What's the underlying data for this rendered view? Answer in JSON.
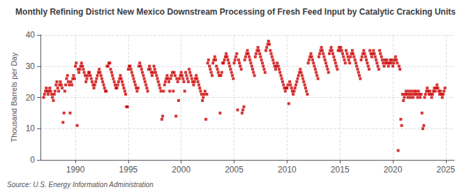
{
  "chart_data": {
    "type": "scatter",
    "title": "Monthly Refining District New Mexico Downstream Processing of Fresh Feed Input by Catalytic Cracking Units",
    "ylabel": "Thousand Barrels per Day",
    "source": "Source: U.S. Energy Information Administration",
    "color": "#cc0000",
    "marker": "square",
    "grid": true,
    "ylim": [
      0,
      40
    ],
    "yticks": [
      0,
      10,
      20,
      30,
      40
    ],
    "xlim": [
      1986.7,
      2025.8
    ],
    "xticks": [
      1990,
      1995,
      2000,
      2005,
      2010,
      2015,
      2020,
      2025
    ],
    "x": [
      1987.0,
      1987.08,
      1987.17,
      1987.25,
      1987.33,
      1987.42,
      1987.5,
      1987.58,
      1987.67,
      1987.75,
      1987.83,
      1987.92,
      1988.0,
      1988.08,
      1988.17,
      1988.25,
      1988.33,
      1988.42,
      1988.5,
      1988.58,
      1988.67,
      1988.75,
      1988.83,
      1988.92,
      1989.0,
      1989.08,
      1989.17,
      1989.25,
      1989.33,
      1989.42,
      1989.5,
      1989.58,
      1989.67,
      1989.75,
      1989.83,
      1989.92,
      1990.0,
      1990.08,
      1990.17,
      1990.25,
      1990.33,
      1990.42,
      1990.5,
      1990.58,
      1990.67,
      1990.75,
      1990.83,
      1990.92,
      1991.0,
      1991.08,
      1991.17,
      1991.25,
      1991.33,
      1991.42,
      1991.5,
      1991.58,
      1991.67,
      1991.75,
      1991.83,
      1991.92,
      1992.0,
      1992.08,
      1992.17,
      1992.25,
      1992.33,
      1992.42,
      1992.5,
      1992.58,
      1992.67,
      1992.75,
      1992.83,
      1992.92,
      1993.0,
      1993.08,
      1993.17,
      1993.25,
      1993.33,
      1993.42,
      1993.5,
      1993.58,
      1993.67,
      1993.75,
      1993.83,
      1993.92,
      1994.0,
      1994.08,
      1994.17,
      1994.25,
      1994.33,
      1994.42,
      1994.5,
      1994.58,
      1994.67,
      1994.75,
      1994.83,
      1994.92,
      1995.0,
      1995.08,
      1995.17,
      1995.25,
      1995.33,
      1995.42,
      1995.5,
      1995.58,
      1995.67,
      1995.75,
      1995.83,
      1995.92,
      1996.0,
      1996.08,
      1996.17,
      1996.25,
      1996.33,
      1996.42,
      1996.5,
      1996.58,
      1996.67,
      1996.75,
      1996.83,
      1996.92,
      1997.0,
      1997.08,
      1997.17,
      1997.25,
      1997.33,
      1997.42,
      1997.5,
      1997.58,
      1997.67,
      1997.75,
      1997.83,
      1997.92,
      1998.0,
      1998.08,
      1998.17,
      1998.25,
      1998.33,
      1998.42,
      1998.5,
      1998.58,
      1998.67,
      1998.75,
      1998.83,
      1998.92,
      1999.0,
      1999.08,
      1999.17,
      1999.25,
      1999.33,
      1999.42,
      1999.5,
      1999.58,
      1999.67,
      1999.75,
      1999.83,
      1999.92,
      2000.0,
      2000.08,
      2000.17,
      2000.25,
      2000.33,
      2000.42,
      2000.5,
      2000.58,
      2000.67,
      2000.75,
      2000.83,
      2000.92,
      2001.0,
      2001.08,
      2001.17,
      2001.25,
      2001.33,
      2001.42,
      2001.5,
      2001.58,
      2001.67,
      2001.75,
      2001.83,
      2001.92,
      2002.0,
      2002.08,
      2002.17,
      2002.25,
      2002.33,
      2002.42,
      2002.5,
      2002.58,
      2002.67,
      2002.75,
      2002.83,
      2002.92,
      2003.0,
      2003.08,
      2003.17,
      2003.25,
      2003.33,
      2003.42,
      2003.5,
      2003.58,
      2003.67,
      2003.75,
      2003.83,
      2003.92,
      2004.0,
      2004.08,
      2004.17,
      2004.25,
      2004.33,
      2004.42,
      2004.5,
      2004.58,
      2004.67,
      2004.75,
      2004.83,
      2004.92,
      2005.0,
      2005.08,
      2005.17,
      2005.25,
      2005.33,
      2005.42,
      2005.5,
      2005.58,
      2005.67,
      2005.75,
      2005.83,
      2005.92,
      2006.0,
      2006.08,
      2006.17,
      2006.25,
      2006.33,
      2006.42,
      2006.5,
      2006.58,
      2006.67,
      2006.75,
      2006.83,
      2006.92,
      2007.0,
      2007.08,
      2007.17,
      2007.25,
      2007.33,
      2007.42,
      2007.5,
      2007.58,
      2007.67,
      2007.75,
      2007.83,
      2007.92,
      2008.0,
      2008.08,
      2008.17,
      2008.25,
      2008.33,
      2008.42,
      2008.5,
      2008.58,
      2008.67,
      2008.75,
      2008.83,
      2008.92,
      2009.0,
      2009.08,
      2009.17,
      2009.25,
      2009.33,
      2009.42,
      2009.5,
      2009.58,
      2009.67,
      2009.75,
      2009.83,
      2009.92,
      2010.0,
      2010.08,
      2010.17,
      2010.25,
      2010.33,
      2010.42,
      2010.5,
      2010.58,
      2010.67,
      2010.75,
      2010.83,
      2010.92,
      2011.0,
      2011.08,
      2011.17,
      2011.25,
      2011.33,
      2011.42,
      2011.5,
      2011.58,
      2011.67,
      2011.75,
      2011.83,
      2011.92,
      2012.0,
      2012.08,
      2012.17,
      2012.25,
      2012.33,
      2012.42,
      2012.5,
      2012.58,
      2012.67,
      2012.75,
      2012.83,
      2012.92,
      2013.0,
      2013.08,
      2013.17,
      2013.25,
      2013.33,
      2013.42,
      2013.5,
      2013.58,
      2013.67,
      2013.75,
      2013.83,
      2013.92,
      2014.0,
      2014.08,
      2014.17,
      2014.25,
      2014.33,
      2014.42,
      2014.5,
      2014.58,
      2014.67,
      2014.75,
      2014.83,
      2014.92,
      2015.0,
      2015.08,
      2015.17,
      2015.25,
      2015.33,
      2015.42,
      2015.5,
      2015.58,
      2015.67,
      2015.75,
      2015.83,
      2015.92,
      2016.0,
      2016.08,
      2016.17,
      2016.25,
      2016.33,
      2016.42,
      2016.5,
      2016.58,
      2016.67,
      2016.75,
      2016.83,
      2016.92,
      2017.0,
      2017.08,
      2017.17,
      2017.25,
      2017.33,
      2017.42,
      2017.5,
      2017.58,
      2017.67,
      2017.75,
      2017.83,
      2017.92,
      2018.0,
      2018.08,
      2018.17,
      2018.25,
      2018.33,
      2018.42,
      2018.5,
      2018.58,
      2018.67,
      2018.75,
      2018.83,
      2018.92,
      2019.0,
      2019.08,
      2019.17,
      2019.25,
      2019.33,
      2019.42,
      2019.5,
      2019.58,
      2019.67,
      2019.75,
      2019.83,
      2019.92,
      2020.0,
      2020.08,
      2020.17,
      2020.25,
      2020.33,
      2020.42,
      2020.5,
      2020.58,
      2020.67,
      2020.75,
      2020.83,
      2020.92,
      2021.0,
      2021.08,
      2021.17,
      2021.25,
      2021.33,
      2021.42,
      2021.5,
      2021.58,
      2021.67,
      2021.75,
      2021.83,
      2021.92,
      2022.0,
      2022.08,
      2022.17,
      2022.25,
      2022.33,
      2022.42,
      2022.5,
      2022.58,
      2022.67,
      2022.75,
      2022.83,
      2022.92,
      2023.0,
      2023.08,
      2023.17,
      2023.25,
      2023.33,
      2023.42,
      2023.5,
      2023.58,
      2023.67,
      2023.75,
      2023.83,
      2023.92,
      2024.0,
      2024.08,
      2024.17,
      2024.25,
      2024.33,
      2024.42,
      2024.5,
      2024.58,
      2024.67,
      2024.75,
      2024.83,
      2024.92
    ],
    "values": [
      20,
      21,
      22,
      23,
      22,
      21,
      22,
      23,
      22,
      21,
      20,
      19,
      21,
      22,
      24,
      25,
      23,
      22,
      24,
      25,
      24,
      23,
      12,
      15,
      22,
      24,
      26,
      27,
      25,
      24,
      15,
      25,
      24,
      26,
      27,
      26,
      30,
      31,
      11,
      29,
      28,
      29,
      30,
      31,
      30,
      29,
      28,
      27,
      25,
      26,
      27,
      28,
      28,
      27,
      26,
      25,
      24,
      23,
      24,
      25,
      26,
      27,
      28,
      29,
      28,
      27,
      26,
      25,
      24,
      23,
      22,
      22,
      30,
      30,
      31,
      31,
      29,
      28,
      27,
      26,
      25,
      24,
      23,
      23,
      24,
      25,
      26,
      27,
      26,
      25,
      24,
      23,
      22,
      21,
      17,
      17,
      29,
      30,
      30,
      29,
      28,
      27,
      26,
      25,
      24,
      23,
      22,
      23,
      30,
      31,
      30,
      29,
      28,
      27,
      26,
      25,
      24,
      23,
      22,
      29,
      30,
      29,
      28,
      27,
      28,
      30,
      29,
      28,
      27,
      26,
      25,
      24,
      23,
      22,
      13,
      14,
      22,
      24,
      25,
      26,
      27,
      26,
      25,
      22,
      26,
      27,
      28,
      22,
      28,
      27,
      14,
      26,
      25,
      19,
      26,
      27,
      28,
      27,
      26,
      25,
      22,
      28,
      27,
      26,
      25,
      29,
      28,
      27,
      26,
      25,
      24,
      25,
      26,
      27,
      26,
      25,
      24,
      23,
      22,
      21,
      19,
      20,
      21,
      22,
      13,
      21,
      31,
      32,
      30,
      29,
      28,
      27,
      31,
      32,
      33,
      32,
      30,
      29,
      28,
      27,
      15,
      27,
      28,
      31,
      31,
      32,
      33,
      34,
      33,
      32,
      31,
      30,
      29,
      28,
      27,
      26,
      31,
      32,
      33,
      34,
      16,
      32,
      31,
      30,
      29,
      15,
      16,
      17,
      32,
      33,
      34,
      35,
      34,
      33,
      32,
      31,
      30,
      29,
      28,
      27,
      33,
      34,
      35,
      36,
      35,
      34,
      33,
      32,
      31,
      30,
      29,
      28,
      35,
      36,
      37,
      38,
      37,
      35,
      34,
      33,
      32,
      31,
      30,
      29,
      30,
      31,
      30,
      29,
      28,
      27,
      26,
      25,
      24,
      23,
      22,
      23,
      23,
      24,
      18,
      25,
      24,
      23,
      22,
      21,
      22,
      23,
      24,
      25,
      26,
      27,
      28,
      29,
      28,
      27,
      26,
      25,
      24,
      23,
      22,
      21,
      31,
      32,
      33,
      34,
      33,
      32,
      31,
      30,
      29,
      28,
      27,
      26,
      33,
      34,
      35,
      36,
      35,
      34,
      33,
      32,
      31,
      30,
      29,
      28,
      34,
      35,
      36,
      35,
      34,
      33,
      32,
      31,
      30,
      29,
      35,
      36,
      35,
      36,
      35,
      34,
      33,
      32,
      31,
      35,
      34,
      33,
      32,
      31,
      33,
      34,
      35,
      34,
      33,
      32,
      31,
      30,
      29,
      28,
      27,
      26,
      32,
      33,
      34,
      35,
      34,
      33,
      32,
      31,
      30,
      29,
      35,
      34,
      33,
      34,
      35,
      34,
      33,
      32,
      31,
      30,
      29,
      35,
      34,
      33,
      32,
      31,
      30,
      32,
      31,
      32,
      31,
      30,
      31,
      32,
      31,
      32,
      30,
      31,
      32,
      33,
      32,
      31,
      3,
      30,
      29,
      13,
      11,
      21,
      19,
      20,
      21,
      22,
      21,
      20,
      22,
      21,
      20,
      22,
      21,
      20,
      22,
      21,
      22,
      21,
      20,
      22,
      21,
      20,
      21,
      15,
      10,
      11,
      20,
      21,
      22,
      23,
      22,
      21,
      22,
      21,
      20,
      21,
      22,
      23,
      22,
      23,
      24,
      23,
      22,
      21,
      22,
      21,
      20,
      21,
      22,
      23
    ]
  }
}
